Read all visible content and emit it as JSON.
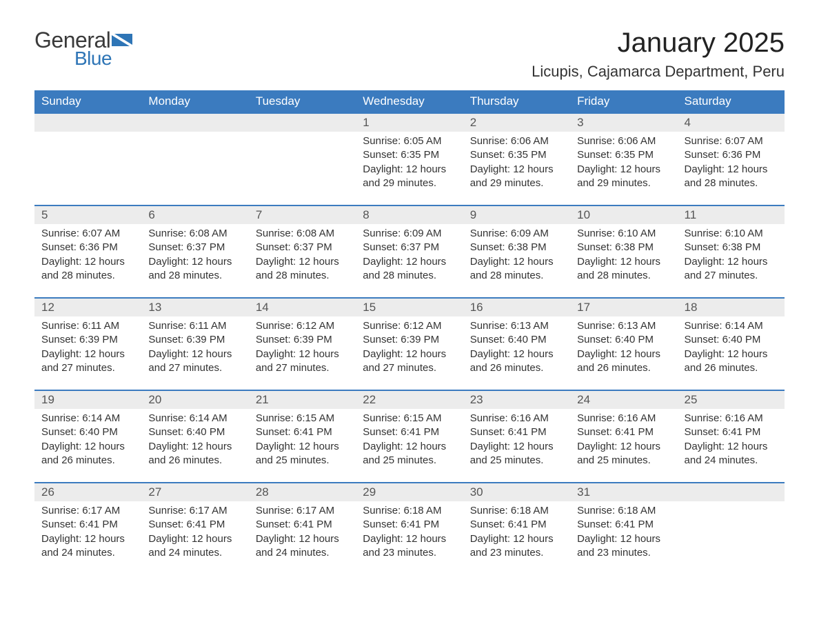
{
  "logo": {
    "general": "General",
    "blue": "Blue"
  },
  "title": "January 2025",
  "location": "Licupis, Cajamarca Department, Peru",
  "colors": {
    "header_bg": "#3b7bbf",
    "header_fg": "#ffffff",
    "row_accent": "#3b7bbf",
    "daynum_bg": "#ececec",
    "daynum_fg": "#555555",
    "body_text": "#333333",
    "logo_blue": "#2e75b6",
    "logo_gray": "#3a3a3a",
    "page_bg": "#ffffff"
  },
  "typography": {
    "title_fontsize": 40,
    "location_fontsize": 22,
    "header_fontsize": 17,
    "daynum_fontsize": 17,
    "data_fontsize": 15
  },
  "table": {
    "columns": [
      "Sunday",
      "Monday",
      "Tuesday",
      "Wednesday",
      "Thursday",
      "Friday",
      "Saturday"
    ],
    "weeks": [
      [
        null,
        null,
        null,
        {
          "n": "1",
          "sunrise": "Sunrise: 6:05 AM",
          "sunset": "Sunset: 6:35 PM",
          "daylight": "Daylight: 12 hours and 29 minutes."
        },
        {
          "n": "2",
          "sunrise": "Sunrise: 6:06 AM",
          "sunset": "Sunset: 6:35 PM",
          "daylight": "Daylight: 12 hours and 29 minutes."
        },
        {
          "n": "3",
          "sunrise": "Sunrise: 6:06 AM",
          "sunset": "Sunset: 6:35 PM",
          "daylight": "Daylight: 12 hours and 29 minutes."
        },
        {
          "n": "4",
          "sunrise": "Sunrise: 6:07 AM",
          "sunset": "Sunset: 6:36 PM",
          "daylight": "Daylight: 12 hours and 28 minutes."
        }
      ],
      [
        {
          "n": "5",
          "sunrise": "Sunrise: 6:07 AM",
          "sunset": "Sunset: 6:36 PM",
          "daylight": "Daylight: 12 hours and 28 minutes."
        },
        {
          "n": "6",
          "sunrise": "Sunrise: 6:08 AM",
          "sunset": "Sunset: 6:37 PM",
          "daylight": "Daylight: 12 hours and 28 minutes."
        },
        {
          "n": "7",
          "sunrise": "Sunrise: 6:08 AM",
          "sunset": "Sunset: 6:37 PM",
          "daylight": "Daylight: 12 hours and 28 minutes."
        },
        {
          "n": "8",
          "sunrise": "Sunrise: 6:09 AM",
          "sunset": "Sunset: 6:37 PM",
          "daylight": "Daylight: 12 hours and 28 minutes."
        },
        {
          "n": "9",
          "sunrise": "Sunrise: 6:09 AM",
          "sunset": "Sunset: 6:38 PM",
          "daylight": "Daylight: 12 hours and 28 minutes."
        },
        {
          "n": "10",
          "sunrise": "Sunrise: 6:10 AM",
          "sunset": "Sunset: 6:38 PM",
          "daylight": "Daylight: 12 hours and 28 minutes."
        },
        {
          "n": "11",
          "sunrise": "Sunrise: 6:10 AM",
          "sunset": "Sunset: 6:38 PM",
          "daylight": "Daylight: 12 hours and 27 minutes."
        }
      ],
      [
        {
          "n": "12",
          "sunrise": "Sunrise: 6:11 AM",
          "sunset": "Sunset: 6:39 PM",
          "daylight": "Daylight: 12 hours and 27 minutes."
        },
        {
          "n": "13",
          "sunrise": "Sunrise: 6:11 AM",
          "sunset": "Sunset: 6:39 PM",
          "daylight": "Daylight: 12 hours and 27 minutes."
        },
        {
          "n": "14",
          "sunrise": "Sunrise: 6:12 AM",
          "sunset": "Sunset: 6:39 PM",
          "daylight": "Daylight: 12 hours and 27 minutes."
        },
        {
          "n": "15",
          "sunrise": "Sunrise: 6:12 AM",
          "sunset": "Sunset: 6:39 PM",
          "daylight": "Daylight: 12 hours and 27 minutes."
        },
        {
          "n": "16",
          "sunrise": "Sunrise: 6:13 AM",
          "sunset": "Sunset: 6:40 PM",
          "daylight": "Daylight: 12 hours and 26 minutes."
        },
        {
          "n": "17",
          "sunrise": "Sunrise: 6:13 AM",
          "sunset": "Sunset: 6:40 PM",
          "daylight": "Daylight: 12 hours and 26 minutes."
        },
        {
          "n": "18",
          "sunrise": "Sunrise: 6:14 AM",
          "sunset": "Sunset: 6:40 PM",
          "daylight": "Daylight: 12 hours and 26 minutes."
        }
      ],
      [
        {
          "n": "19",
          "sunrise": "Sunrise: 6:14 AM",
          "sunset": "Sunset: 6:40 PM",
          "daylight": "Daylight: 12 hours and 26 minutes."
        },
        {
          "n": "20",
          "sunrise": "Sunrise: 6:14 AM",
          "sunset": "Sunset: 6:40 PM",
          "daylight": "Daylight: 12 hours and 26 minutes."
        },
        {
          "n": "21",
          "sunrise": "Sunrise: 6:15 AM",
          "sunset": "Sunset: 6:41 PM",
          "daylight": "Daylight: 12 hours and 25 minutes."
        },
        {
          "n": "22",
          "sunrise": "Sunrise: 6:15 AM",
          "sunset": "Sunset: 6:41 PM",
          "daylight": "Daylight: 12 hours and 25 minutes."
        },
        {
          "n": "23",
          "sunrise": "Sunrise: 6:16 AM",
          "sunset": "Sunset: 6:41 PM",
          "daylight": "Daylight: 12 hours and 25 minutes."
        },
        {
          "n": "24",
          "sunrise": "Sunrise: 6:16 AM",
          "sunset": "Sunset: 6:41 PM",
          "daylight": "Daylight: 12 hours and 25 minutes."
        },
        {
          "n": "25",
          "sunrise": "Sunrise: 6:16 AM",
          "sunset": "Sunset: 6:41 PM",
          "daylight": "Daylight: 12 hours and 24 minutes."
        }
      ],
      [
        {
          "n": "26",
          "sunrise": "Sunrise: 6:17 AM",
          "sunset": "Sunset: 6:41 PM",
          "daylight": "Daylight: 12 hours and 24 minutes."
        },
        {
          "n": "27",
          "sunrise": "Sunrise: 6:17 AM",
          "sunset": "Sunset: 6:41 PM",
          "daylight": "Daylight: 12 hours and 24 minutes."
        },
        {
          "n": "28",
          "sunrise": "Sunrise: 6:17 AM",
          "sunset": "Sunset: 6:41 PM",
          "daylight": "Daylight: 12 hours and 24 minutes."
        },
        {
          "n": "29",
          "sunrise": "Sunrise: 6:18 AM",
          "sunset": "Sunset: 6:41 PM",
          "daylight": "Daylight: 12 hours and 23 minutes."
        },
        {
          "n": "30",
          "sunrise": "Sunrise: 6:18 AM",
          "sunset": "Sunset: 6:41 PM",
          "daylight": "Daylight: 12 hours and 23 minutes."
        },
        {
          "n": "31",
          "sunrise": "Sunrise: 6:18 AM",
          "sunset": "Sunset: 6:41 PM",
          "daylight": "Daylight: 12 hours and 23 minutes."
        },
        null
      ]
    ]
  }
}
